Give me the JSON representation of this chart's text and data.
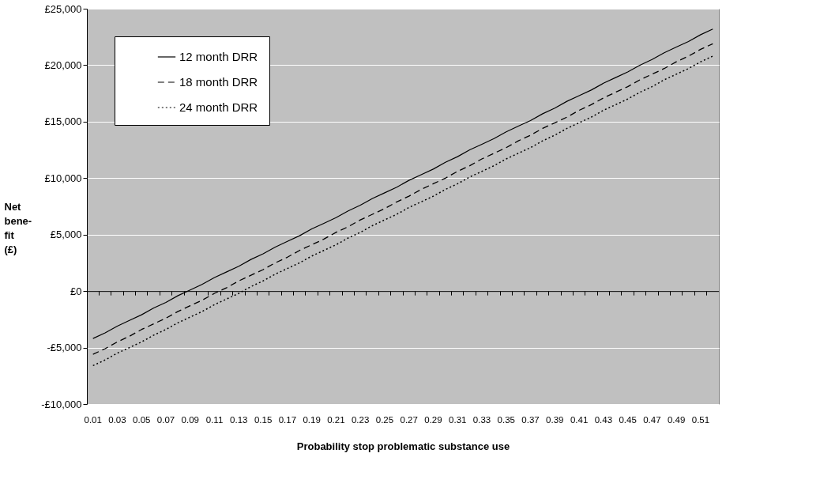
{
  "chart_data": {
    "type": "line",
    "xlabel": "Probability stop problematic substance use",
    "ylabel": "Net bene-fit (£)",
    "categories": [
      "0.01",
      null,
      "0.03",
      null,
      "0.05",
      null,
      "0.07",
      null,
      "0.09",
      null,
      "0.11",
      null,
      "0.13",
      null,
      "0.15",
      null,
      "0.17",
      null,
      "0.19",
      null,
      "0.21",
      null,
      "0.23",
      null,
      "0.25",
      null,
      "0.27",
      null,
      "0.29",
      null,
      "0.31",
      null,
      "0.33",
      null,
      "0.35",
      null,
      "0.37",
      null,
      "0.39",
      null,
      "0.41",
      null,
      "0.43",
      null,
      "0.45",
      null,
      "0.47",
      null,
      "0.49",
      null,
      "0.51",
      null
    ],
    "series": [
      {
        "name": "12 month DRR",
        "color": "#000000",
        "line_style": "solid",
        "values": [
          -4200,
          -3700,
          -3100,
          -2600,
          -2100,
          -1500,
          -1000,
          -400,
          100,
          600,
          1200,
          1700,
          2200,
          2800,
          3300,
          3900,
          4400,
          4900,
          5500,
          6000,
          6500,
          7100,
          7600,
          8200,
          8700,
          9200,
          9800,
          10300,
          10800,
          11400,
          11900,
          12500,
          13000,
          13500,
          14100,
          14600,
          15100,
          15700,
          16200,
          16800,
          17300,
          17800,
          18400,
          18900,
          19400,
          20000,
          20500,
          21100,
          21600,
          22100,
          22700,
          23200
        ]
      },
      {
        "name": "18 month DRR",
        "color": "#000000",
        "line_style": "dashed",
        "values": [
          -5600,
          -5100,
          -4500,
          -4000,
          -3400,
          -2900,
          -2400,
          -1800,
          -1300,
          -800,
          -200,
          300,
          900,
          1400,
          1900,
          2500,
          3000,
          3600,
          4100,
          4600,
          5200,
          5700,
          6300,
          6800,
          7300,
          7900,
          8400,
          9000,
          9500,
          10000,
          10600,
          11100,
          11700,
          12200,
          12700,
          13300,
          13800,
          14400,
          14900,
          15400,
          16000,
          16500,
          17100,
          17600,
          18100,
          18700,
          19200,
          19700,
          20300,
          20800,
          21400,
          21900
        ]
      },
      {
        "name": "24 month DRR",
        "color": "#000000",
        "line_style": "dotted",
        "values": [
          -6600,
          -6100,
          -5500,
          -5000,
          -4500,
          -3900,
          -3400,
          -2800,
          -2300,
          -1800,
          -1200,
          -700,
          -200,
          400,
          900,
          1500,
          2000,
          2500,
          3100,
          3600,
          4100,
          4700,
          5200,
          5800,
          6300,
          6800,
          7400,
          7900,
          8400,
          9000,
          9500,
          10100,
          10600,
          11100,
          11700,
          12200,
          12700,
          13300,
          13800,
          14400,
          14900,
          15400,
          16000,
          16500,
          17000,
          17600,
          18100,
          18700,
          19200,
          19700,
          20300,
          20800
        ]
      }
    ],
    "ylim": [
      -10000,
      25000
    ],
    "yticks": [
      {
        "value": -10000,
        "label": "-£10,000"
      },
      {
        "value": -5000,
        "label": "-£5,000"
      },
      {
        "value": 0,
        "label": "£0"
      },
      {
        "value": 5000,
        "label": "£5,000"
      },
      {
        "value": 10000,
        "label": "£10,000"
      },
      {
        "value": 15000,
        "label": "£15,000"
      },
      {
        "value": 20000,
        "label": "£20,000"
      },
      {
        "value": 25000,
        "label": "£25,000"
      }
    ],
    "grid": "y",
    "legend": "top left",
    "marker": "none"
  }
}
